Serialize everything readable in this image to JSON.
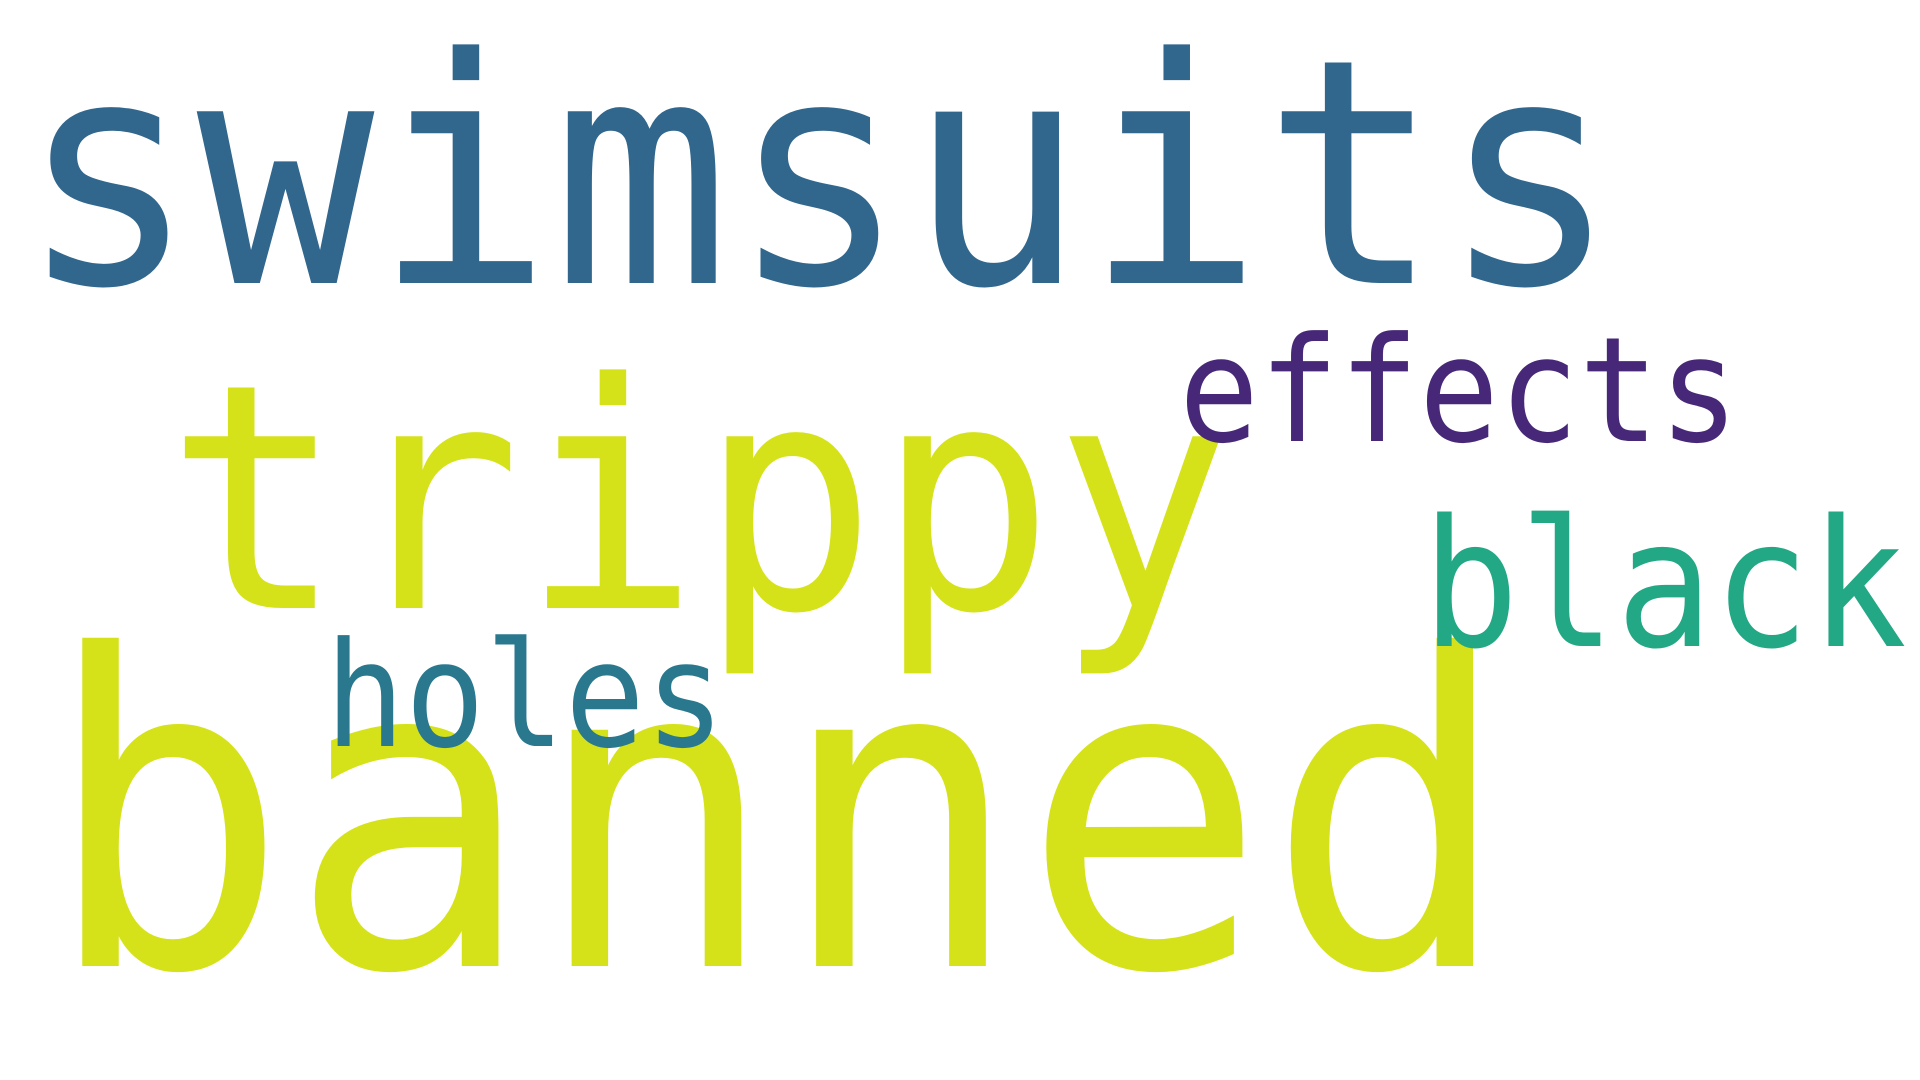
{
  "word_cloud": {
    "background_color": "#ffffff",
    "words": [
      {
        "key": "swimsuits",
        "text": "swimsuits",
        "color": "#31668d"
      },
      {
        "key": "trippy",
        "text": "trippy",
        "color": "#d5e21a"
      },
      {
        "key": "banned",
        "text": "banned",
        "color": "#d5e21a"
      },
      {
        "key": "effects",
        "text": "effects",
        "color": "#472878"
      },
      {
        "key": "black",
        "text": "black",
        "color": "#22a884"
      },
      {
        "key": "holes",
        "text": "holes",
        "color": "#2a788e"
      }
    ]
  }
}
